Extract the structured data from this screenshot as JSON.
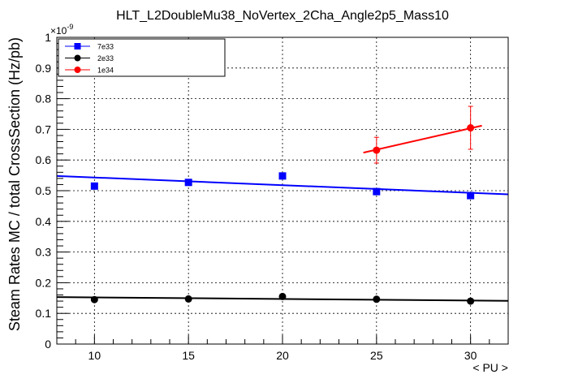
{
  "chart_data": {
    "type": "scatter",
    "title": "HLT_L2DoubleMu38_NoVertex_2Cha_Angle2p5_Mass10",
    "xlabel": "< PU >",
    "ylabel": "Steam Rates MC / total CrossSection (Hz/pb)",
    "y_exponent_label": "×10",
    "y_exponent_power": "-9",
    "xlim": [
      8,
      32
    ],
    "ylim": [
      0,
      1
    ],
    "x_ticks": [
      10,
      15,
      20,
      25,
      30
    ],
    "x_tick_labels": [
      "10",
      "15",
      "20",
      "25",
      "30"
    ],
    "y_ticks": [
      0,
      0.1,
      0.2,
      0.3,
      0.4,
      0.5,
      0.6,
      0.7,
      0.8,
      0.9,
      1
    ],
    "y_tick_labels": [
      "0",
      "0.1",
      "0.2",
      "0.3",
      "0.4",
      "0.5",
      "0.6",
      "0.7",
      "0.8",
      "0.9",
      "1"
    ],
    "grid": true,
    "legend_position": "top-left",
    "series": [
      {
        "name": "7e33",
        "color": "#0000ff",
        "marker": "square",
        "x": [
          10,
          15,
          20,
          25,
          30
        ],
        "y": [
          0.515,
          0.527,
          0.548,
          0.497,
          0.484
        ],
        "err": [
          0.004,
          0.004,
          0.004,
          0.004,
          0.004
        ],
        "fit": {
          "x": [
            8,
            32
          ],
          "y": [
            0.548,
            0.488
          ]
        }
      },
      {
        "name": "2e33",
        "color": "#000000",
        "marker": "circle",
        "x": [
          10,
          15,
          20,
          25,
          30
        ],
        "y": [
          0.145,
          0.147,
          0.155,
          0.146,
          0.14
        ],
        "err": [
          0.003,
          0.003,
          0.003,
          0.003,
          0.003
        ],
        "fit": {
          "x": [
            8,
            32
          ],
          "y": [
            0.153,
            0.141
          ]
        }
      },
      {
        "name": "1e34",
        "color": "#ff0000",
        "marker": "circle",
        "x": [
          25,
          30
        ],
        "y": [
          0.632,
          0.705
        ],
        "err": [
          0.042,
          0.07
        ],
        "fit": {
          "x": [
            24.3,
            30.6
          ],
          "y": [
            0.624,
            0.712
          ]
        }
      }
    ]
  }
}
